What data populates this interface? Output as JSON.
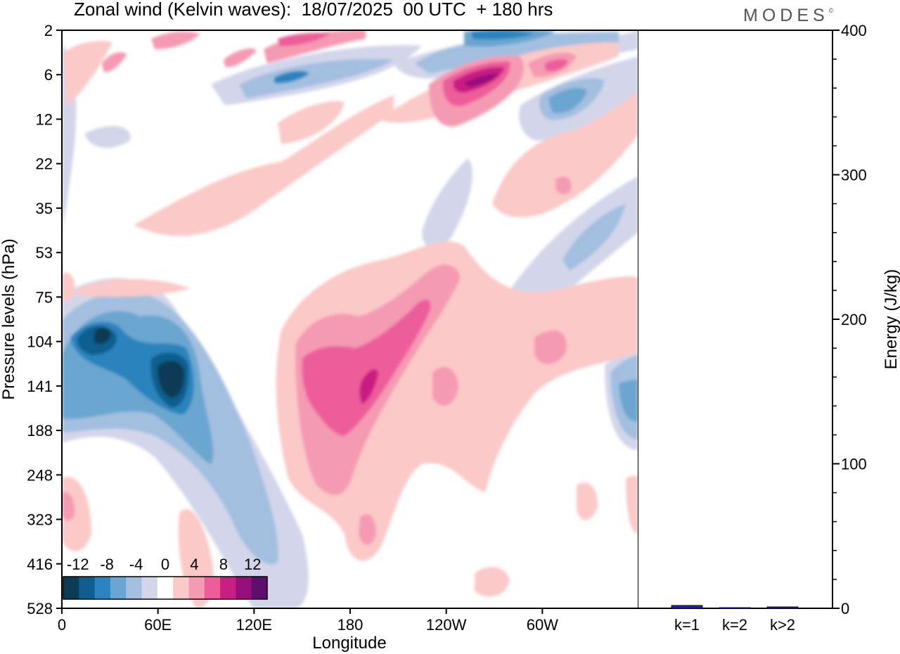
{
  "header": {
    "title": "Zonal wind (Kelvin waves):  18/07/2025  00 UTC  + 180 hrs",
    "brand": "MODES"
  },
  "chart_data": [
    {
      "type": "heatmap",
      "description_fields": "filled contour of zonal wind anomaly by longitude and pressure level",
      "title": "Zonal wind (Kelvin waves):  18/07/2025  00 UTC  + 180 hrs",
      "xlabel": "Longitude",
      "ylabel": "Pressure levels (hPa)",
      "x_ticks": [
        "0",
        "60E",
        "120E",
        "180",
        "120W",
        "60W"
      ],
      "x_tick_values": [
        0,
        60,
        120,
        180,
        240,
        300
      ],
      "xlim": [
        0,
        360
      ],
      "y_ticks": [
        "2",
        "6",
        "12",
        "22",
        "35",
        "53",
        "75",
        "104",
        "141",
        "188",
        "248",
        "323",
        "416",
        "528"
      ],
      "y_scale": "log-pressure (top = 2 hPa, bottom = 528 hPa)",
      "colorbar": {
        "tick_labels": [
          "-12",
          "-8",
          "-4",
          "0",
          "4",
          "8",
          "12"
        ],
        "levels": [
          -14,
          -12,
          -10,
          -8,
          -6,
          -4,
          -2,
          2,
          4,
          6,
          8,
          10,
          12,
          14
        ],
        "colors": [
          "#0d3b55",
          "#0e5f8f",
          "#2c83bd",
          "#6aa6d0",
          "#a3bfe0",
          "#d3d6ea",
          "#ffffff",
          "#fbc9c7",
          "#f59ab3",
          "#ed5d9a",
          "#c81f82",
          "#960f7a",
          "#5d0f6b"
        ]
      },
      "features": [
        {
          "kind": "negative",
          "label": "-14",
          "lon": 60,
          "level_hPa": 125
        },
        {
          "kind": "negative",
          "label": "-12",
          "lon": 18,
          "level_hPa": 100
        },
        {
          "kind": "negative",
          "label": "-10",
          "lon": 12,
          "level_hPa": 160
        },
        {
          "kind": "positive",
          "label": "10",
          "lon": 195,
          "level_hPa": 140
        },
        {
          "kind": "positive",
          "label": "12",
          "lon": 268,
          "level_hPa": 6
        },
        {
          "kind": "negative",
          "label": "-8",
          "lon": 270,
          "level_hPa": 2
        },
        {
          "kind": "positive",
          "label": "8",
          "lon": 310,
          "level_hPa": 5
        }
      ]
    },
    {
      "type": "bar",
      "categories": [
        "k=1",
        "k=2",
        "k>2"
      ],
      "values": [
        2,
        0.5,
        1
      ],
      "ylabel": "Energy (J/kg)",
      "ylim": [
        0,
        400
      ],
      "y_ticks": [
        "0",
        "100",
        "200",
        "300",
        "400"
      ],
      "bar_color": "#1f1fb5"
    }
  ]
}
